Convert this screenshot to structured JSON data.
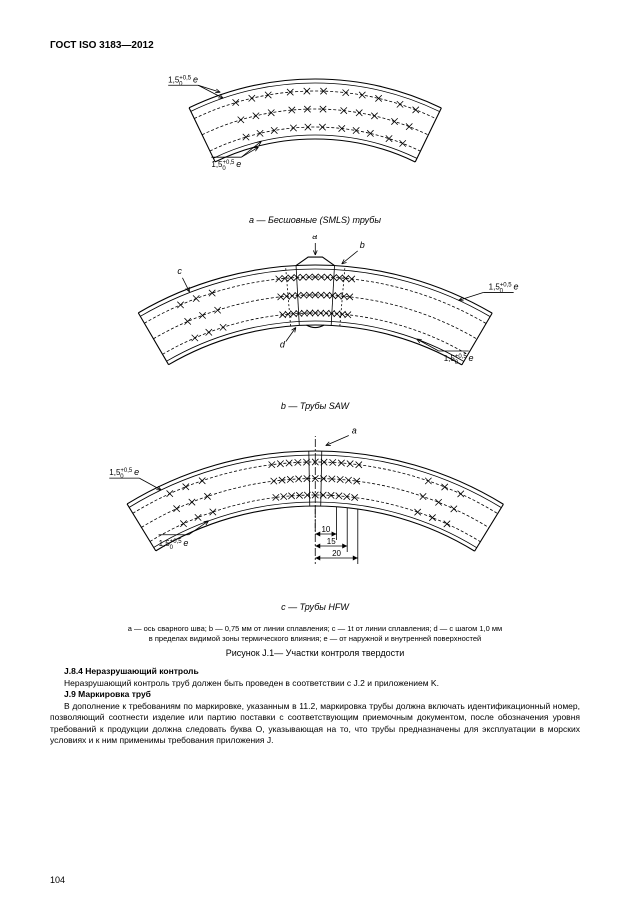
{
  "header": "ГОСТ ISO 3183—2012",
  "page_number": "104",
  "tol_label": "1,5",
  "tol_sup": "+0,5",
  "tol_sub": "0",
  "tol_e": "e",
  "fig_a": {
    "caption": "a — Бесшовные (SMLS) трубы"
  },
  "fig_b": {
    "caption": "b — Трубы SAW",
    "letters": {
      "a": "a",
      "b": "b",
      "c": "c",
      "d": "d"
    }
  },
  "fig_c": {
    "caption": "c — Трубы HFW",
    "letter_a": "a",
    "dim10": "10",
    "dim15": "15",
    "dim20": "20"
  },
  "note_line1": "a — ось сварного шва; b — 0,75 мм от линии сплавления; c — 1t от линии сплавления; d — с шагом 1,0 мм",
  "note_line2": "в пределах видимой зоны термического влияния; e — от наружной и внутренней поверхностей",
  "figure_title": "Рисунок J.1— Участки контроля твердости",
  "sect_j84_h": "J.8.4 Неразрушающий контроль",
  "sect_j84_t": "Неразрушающий контроль труб должен быть проведен в соответствии с J.2 и приложением K.",
  "sect_j9_h": "J.9 Маркировка труб",
  "sect_j9_t": "В дополнение к требованиям по маркировке, указанным в 11.2, маркировка трубы должна включать идентификационный номер, позволяющий соотнести изделие или партию поставки с соответствующим приемочным документом, после обозначения уровня требований к продукции должна следовать буква O, указывающая на то, что трубы предназначены для эксплуатации в морских условиях и к ним применимы требования приложения J.",
  "style": {
    "line_color": "#000000",
    "line_width_thin": 0.8,
    "line_width_med": 1.1,
    "cross_size": 3.2,
    "font_size_small": 8,
    "font_size_italic": 9
  }
}
